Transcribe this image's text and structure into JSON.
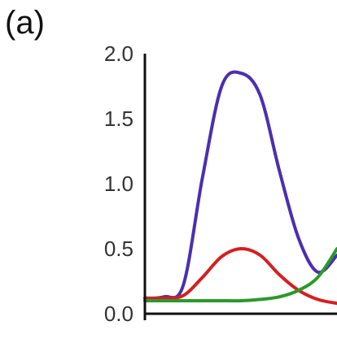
{
  "panel_label": "(a)",
  "chart_data": {
    "type": "line",
    "title": "",
    "xlabel": "",
    "ylabel": "",
    "ylim": [
      0.0,
      2.0
    ],
    "yticks": [
      "0.0",
      "0.5",
      "1.0",
      "1.5",
      "2.0"
    ],
    "x": [
      0,
      0.1,
      0.2,
      0.3,
      0.4,
      0.5,
      0.6,
      0.7,
      0.8,
      0.9,
      1.0
    ],
    "series": [
      {
        "color": "#4a2fb0",
        "values": [
          0.12,
          0.13,
          0.22,
          1.05,
          1.75,
          1.85,
          1.68,
          1.1,
          0.58,
          0.32,
          0.45
        ]
      },
      {
        "color": "#d42020",
        "values": [
          0.12,
          0.12,
          0.14,
          0.28,
          0.44,
          0.5,
          0.45,
          0.3,
          0.18,
          0.11,
          0.08
        ]
      },
      {
        "color": "#2a9a2a",
        "values": [
          0.1,
          0.1,
          0.1,
          0.1,
          0.1,
          0.1,
          0.11,
          0.13,
          0.18,
          0.28,
          0.5
        ]
      }
    ]
  }
}
